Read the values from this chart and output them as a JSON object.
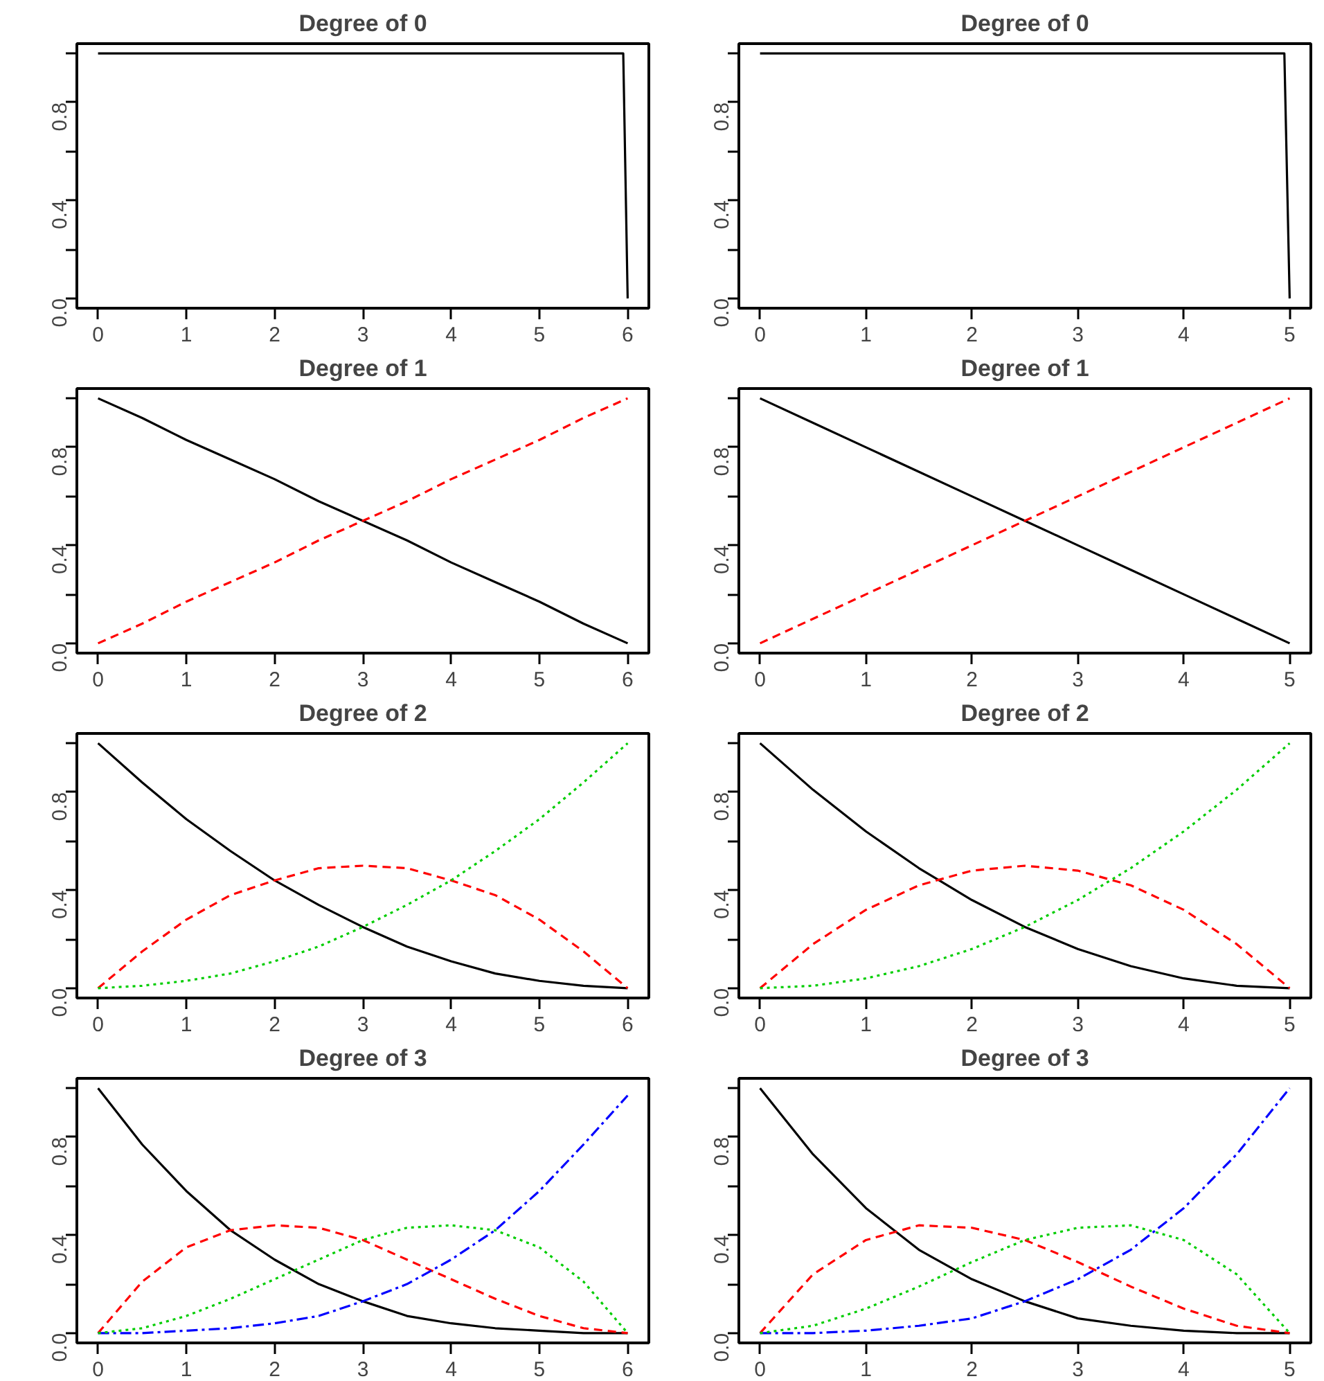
{
  "chart_data": [
    {
      "type": "line",
      "title": "Degree of 0",
      "xlim": [
        -0.24,
        6.24
      ],
      "ylim": [
        -0.04,
        1.04
      ],
      "xticks": [
        0,
        1,
        2,
        3,
        4,
        5,
        6
      ],
      "yticks": [
        {
          "value": 0,
          "label": "0.0"
        },
        {
          "value": 0.2,
          "label": null
        },
        {
          "value": 0.4,
          "label": "0.4"
        },
        {
          "value": 0.6,
          "label": null
        },
        {
          "value": 0.8,
          "label": "0.8"
        },
        {
          "value": 1,
          "label": null
        }
      ],
      "grid": false,
      "series": [
        {
          "color": "#000000",
          "line_style": "solid",
          "x": [
            0,
            5.95,
            6
          ],
          "values": [
            1,
            1,
            0
          ]
        }
      ]
    },
    {
      "type": "line",
      "title": "Degree of 0",
      "xlim": [
        -0.2,
        5.2
      ],
      "ylim": [
        -0.04,
        1.04
      ],
      "xticks": [
        0,
        1,
        2,
        3,
        4,
        5
      ],
      "yticks": [
        {
          "value": 0,
          "label": "0.0"
        },
        {
          "value": 0.2,
          "label": null
        },
        {
          "value": 0.4,
          "label": "0.4"
        },
        {
          "value": 0.6,
          "label": null
        },
        {
          "value": 0.8,
          "label": "0.8"
        },
        {
          "value": 1,
          "label": null
        }
      ],
      "grid": false,
      "series": [
        {
          "color": "#000000",
          "line_style": "solid",
          "x": [
            0,
            4.95,
            5
          ],
          "values": [
            1,
            1,
            0
          ]
        }
      ]
    },
    {
      "type": "line",
      "title": "Degree of 1",
      "xlim": [
        -0.24,
        6.24
      ],
      "ylim": [
        -0.04,
        1.04
      ],
      "xticks": [
        0,
        1,
        2,
        3,
        4,
        5,
        6
      ],
      "yticks": [
        {
          "value": 0,
          "label": "0.0"
        },
        {
          "value": 0.2,
          "label": null
        },
        {
          "value": 0.4,
          "label": "0.4"
        },
        {
          "value": 0.6,
          "label": null
        },
        {
          "value": 0.8,
          "label": "0.8"
        },
        {
          "value": 1,
          "label": null
        }
      ],
      "grid": false,
      "x": [
        0,
        0.5,
        1,
        1.5,
        2,
        2.5,
        3,
        3.5,
        4,
        4.5,
        5,
        5.5,
        6
      ],
      "series": [
        {
          "color": "#000000",
          "line_style": "solid",
          "values": [
            1,
            0.92,
            0.83,
            0.75,
            0.67,
            0.58,
            0.5,
            0.42,
            0.33,
            0.25,
            0.17,
            0.08,
            0
          ]
        },
        {
          "color": "#ff0000",
          "line_style": "dashed",
          "values": [
            0,
            0.08,
            0.17,
            0.25,
            0.33,
            0.42,
            0.5,
            0.58,
            0.67,
            0.75,
            0.83,
            0.92,
            1
          ]
        }
      ]
    },
    {
      "type": "line",
      "title": "Degree of 1",
      "xlim": [
        -0.2,
        5.2
      ],
      "ylim": [
        -0.04,
        1.04
      ],
      "xticks": [
        0,
        1,
        2,
        3,
        4,
        5
      ],
      "yticks": [
        {
          "value": 0,
          "label": "0.0"
        },
        {
          "value": 0.2,
          "label": null
        },
        {
          "value": 0.4,
          "label": "0.4"
        },
        {
          "value": 0.6,
          "label": null
        },
        {
          "value": 0.8,
          "label": "0.8"
        },
        {
          "value": 1,
          "label": null
        }
      ],
      "grid": false,
      "x": [
        0,
        0.5,
        1,
        1.5,
        2,
        2.5,
        3,
        3.5,
        4,
        4.5,
        5
      ],
      "series": [
        {
          "color": "#000000",
          "line_style": "solid",
          "values": [
            1,
            0.9,
            0.8,
            0.7,
            0.6,
            0.5,
            0.4,
            0.3,
            0.2,
            0.1,
            0
          ]
        },
        {
          "color": "#ff0000",
          "line_style": "dashed",
          "values": [
            0,
            0.1,
            0.2,
            0.3,
            0.4,
            0.5,
            0.6,
            0.7,
            0.8,
            0.9,
            1
          ]
        }
      ]
    },
    {
      "type": "line",
      "title": "Degree of 2",
      "xlim": [
        -0.24,
        6.24
      ],
      "ylim": [
        -0.04,
        1.04
      ],
      "xticks": [
        0,
        1,
        2,
        3,
        4,
        5,
        6
      ],
      "yticks": [
        {
          "value": 0,
          "label": "0.0"
        },
        {
          "value": 0.2,
          "label": null
        },
        {
          "value": 0.4,
          "label": "0.4"
        },
        {
          "value": 0.6,
          "label": null
        },
        {
          "value": 0.8,
          "label": "0.8"
        },
        {
          "value": 1,
          "label": null
        }
      ],
      "grid": false,
      "x": [
        0,
        0.5,
        1,
        1.5,
        2,
        2.5,
        3,
        3.5,
        4,
        4.5,
        5,
        5.5,
        6
      ],
      "series": [
        {
          "color": "#000000",
          "line_style": "solid",
          "values": [
            1,
            0.84,
            0.69,
            0.56,
            0.44,
            0.34,
            0.25,
            0.17,
            0.11,
            0.06,
            0.03,
            0.01,
            0
          ]
        },
        {
          "color": "#ff0000",
          "line_style": "dashed",
          "values": [
            0,
            0.15,
            0.28,
            0.38,
            0.44,
            0.49,
            0.5,
            0.49,
            0.44,
            0.38,
            0.28,
            0.15,
            0
          ]
        },
        {
          "color": "#00cd00",
          "line_style": "dotted",
          "values": [
            0,
            0.01,
            0.03,
            0.06,
            0.11,
            0.17,
            0.25,
            0.34,
            0.44,
            0.56,
            0.69,
            0.84,
            1
          ]
        }
      ]
    },
    {
      "type": "line",
      "title": "Degree of 2",
      "xlim": [
        -0.2,
        5.2
      ],
      "ylim": [
        -0.04,
        1.04
      ],
      "xticks": [
        0,
        1,
        2,
        3,
        4,
        5
      ],
      "yticks": [
        {
          "value": 0,
          "label": "0.0"
        },
        {
          "value": 0.2,
          "label": null
        },
        {
          "value": 0.4,
          "label": "0.4"
        },
        {
          "value": 0.6,
          "label": null
        },
        {
          "value": 0.8,
          "label": "0.8"
        },
        {
          "value": 1,
          "label": null
        }
      ],
      "grid": false,
      "x": [
        0,
        0.5,
        1,
        1.5,
        2,
        2.5,
        3,
        3.5,
        4,
        4.5,
        5
      ],
      "series": [
        {
          "color": "#000000",
          "line_style": "solid",
          "values": [
            1,
            0.81,
            0.64,
            0.49,
            0.36,
            0.25,
            0.16,
            0.09,
            0.04,
            0.01,
            0
          ]
        },
        {
          "color": "#ff0000",
          "line_style": "dashed",
          "values": [
            0,
            0.18,
            0.32,
            0.42,
            0.48,
            0.5,
            0.48,
            0.42,
            0.32,
            0.18,
            0
          ]
        },
        {
          "color": "#00cd00",
          "line_style": "dotted",
          "values": [
            0,
            0.01,
            0.04,
            0.09,
            0.16,
            0.25,
            0.36,
            0.49,
            0.64,
            0.81,
            1
          ]
        }
      ]
    },
    {
      "type": "line",
      "title": "Degree of 3",
      "xlim": [
        -0.24,
        6.24
      ],
      "ylim": [
        -0.04,
        1.04
      ],
      "xticks": [
        0,
        1,
        2,
        3,
        4,
        5,
        6
      ],
      "yticks": [
        {
          "value": 0,
          "label": "0.0"
        },
        {
          "value": 0.2,
          "label": null
        },
        {
          "value": 0.4,
          "label": "0.4"
        },
        {
          "value": 0.6,
          "label": null
        },
        {
          "value": 0.8,
          "label": "0.8"
        },
        {
          "value": 1,
          "label": null
        }
      ],
      "grid": false,
      "x": [
        0,
        0.5,
        1,
        1.5,
        2,
        2.5,
        3,
        3.5,
        4,
        4.5,
        5,
        5.5,
        6
      ],
      "series": [
        {
          "color": "#000000",
          "line_style": "solid",
          "values": [
            1,
            0.77,
            0.58,
            0.42,
            0.3,
            0.2,
            0.13,
            0.07,
            0.04,
            0.02,
            0.01,
            0,
            0
          ]
        },
        {
          "color": "#ff0000",
          "line_style": "dashed",
          "values": [
            0,
            0.21,
            0.35,
            0.42,
            0.44,
            0.43,
            0.38,
            0.3,
            0.22,
            0.14,
            0.07,
            0.02,
            0
          ]
        },
        {
          "color": "#00cd00",
          "line_style": "dotted",
          "values": [
            0,
            0.02,
            0.07,
            0.14,
            0.22,
            0.3,
            0.38,
            0.43,
            0.44,
            0.42,
            0.35,
            0.21,
            0
          ]
        },
        {
          "color": "#0000ff",
          "line_style": "dotdash",
          "values": [
            0,
            0,
            0.01,
            0.02,
            0.04,
            0.07,
            0.13,
            0.2,
            0.3,
            0.42,
            0.58,
            0.77,
            0.97
          ]
        }
      ]
    },
    {
      "type": "line",
      "title": "Degree of 3",
      "xlim": [
        -0.2,
        5.2
      ],
      "ylim": [
        -0.04,
        1.04
      ],
      "xticks": [
        0,
        1,
        2,
        3,
        4,
        5
      ],
      "yticks": [
        {
          "value": 0,
          "label": "0.0"
        },
        {
          "value": 0.2,
          "label": null
        },
        {
          "value": 0.4,
          "label": "0.4"
        },
        {
          "value": 0.6,
          "label": null
        },
        {
          "value": 0.8,
          "label": "0.8"
        },
        {
          "value": 1,
          "label": null
        }
      ],
      "grid": false,
      "x": [
        0,
        0.5,
        1,
        1.5,
        2,
        2.5,
        3,
        3.5,
        4,
        4.5,
        5
      ],
      "series": [
        {
          "color": "#000000",
          "line_style": "solid",
          "values": [
            1,
            0.73,
            0.51,
            0.34,
            0.22,
            0.13,
            0.06,
            0.03,
            0.01,
            0,
            0
          ]
        },
        {
          "color": "#ff0000",
          "line_style": "dashed",
          "values": [
            0,
            0.24,
            0.38,
            0.44,
            0.43,
            0.38,
            0.29,
            0.19,
            0.1,
            0.03,
            0
          ]
        },
        {
          "color": "#00cd00",
          "line_style": "dotted",
          "values": [
            0,
            0.03,
            0.1,
            0.19,
            0.29,
            0.38,
            0.43,
            0.44,
            0.38,
            0.24,
            0
          ]
        },
        {
          "color": "#0000ff",
          "line_style": "dotdash",
          "values": [
            0,
            0,
            0.01,
            0.03,
            0.06,
            0.13,
            0.22,
            0.34,
            0.51,
            0.73,
            1
          ]
        }
      ]
    }
  ]
}
